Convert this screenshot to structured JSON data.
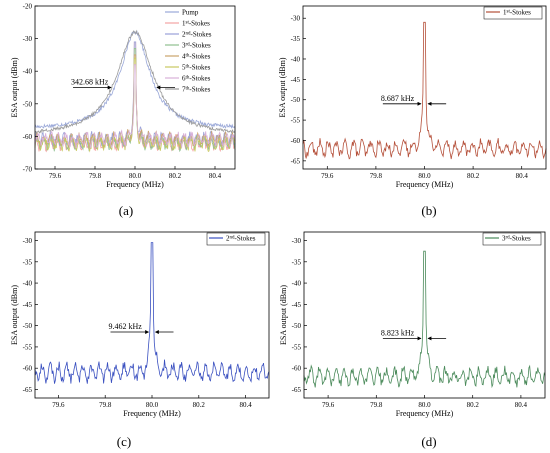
{
  "chart_data": [
    {
      "id": "a",
      "type": "line",
      "caption": "(a)",
      "xlabel": "Frequency (MHz)",
      "ylabel": "ESA output (dBm)",
      "xlim": [
        79.5,
        80.5
      ],
      "ylim": [
        -70,
        -20
      ],
      "xticks": [
        79.6,
        79.8,
        80.0,
        80.2,
        80.4
      ],
      "yticks": [
        -70,
        -60,
        -50,
        -40,
        -30,
        -20
      ],
      "legend_position": "top-right",
      "series": [
        {
          "name": "Pump",
          "color": "#9aa8d8",
          "shape": "pump",
          "peak": -28,
          "floor": -58
        },
        {
          "name": "1st-Stokes",
          "name_base": "1",
          "name_sup": "st",
          "name_tail": "-Stokes",
          "color": "#f4a3a3",
          "shape": "narrow",
          "peak": -31,
          "floor": -62
        },
        {
          "name": "2nd-Stokes",
          "name_base": "2",
          "name_sup": "nd",
          "name_tail": "-Stokes",
          "color": "#9aa0d8",
          "shape": "narrow",
          "peak": -31,
          "floor": -61
        },
        {
          "name": "3rd-Stokes",
          "name_base": "3",
          "name_sup": "rd",
          "name_tail": "-Stokes",
          "color": "#8fbf8f",
          "shape": "narrow",
          "peak": -33,
          "floor": -62
        },
        {
          "name": "4th-Stokes",
          "name_base": "4",
          "name_sup": "th",
          "name_tail": "-Stokes",
          "color": "#c9a26a",
          "shape": "narrow",
          "peak": -35,
          "floor": -61
        },
        {
          "name": "5th-Stokes",
          "name_base": "5",
          "name_sup": "th",
          "name_tail": "-Stokes",
          "color": "#c8c860",
          "shape": "narrow",
          "peak": -36,
          "floor": -62
        },
        {
          "name": "6th-Stokes",
          "name_base": "6",
          "name_sup": "th",
          "name_tail": "-Stokes",
          "color": "#d8b0d8",
          "shape": "narrow",
          "peak": -38,
          "floor": -61
        },
        {
          "name": "7th-Stokes",
          "name_base": "7",
          "name_sup": "th",
          "name_tail": "-Stokes",
          "color": "#9a9a9a",
          "shape": "lorentz",
          "peak": -28,
          "floor": -60
        }
      ],
      "annotation": {
        "text": "342.68 kHz",
        "level": -45,
        "left": 79.88,
        "right": 80.11
      }
    },
    {
      "id": "b",
      "type": "line",
      "caption": "(b)",
      "xlabel": "Frequency (MHz)",
      "ylabel": "ESA output (dBm)",
      "xlim": [
        79.5,
        80.5
      ],
      "ylim": [
        -67,
        -27
      ],
      "xticks": [
        79.6,
        79.8,
        80.0,
        80.2,
        80.4
      ],
      "yticks": [
        -65,
        -60,
        -55,
        -50,
        -45,
        -40,
        -35,
        -30
      ],
      "legend_position": "top-right",
      "series": [
        {
          "name": "1st-Stokes",
          "name_base": "1",
          "name_sup": "st",
          "name_tail": "-Stokes",
          "color": "#b5503a",
          "shape": "narrow",
          "peak": -31,
          "floor": -62
        }
      ],
      "annotation": {
        "text": "8.687 kHz",
        "level": -51,
        "left": 79.985,
        "right": 80.015
      }
    },
    {
      "id": "c",
      "type": "line",
      "caption": "(c)",
      "xlabel": "Frequency (MHz)",
      "ylabel": "ESA output (dBm)",
      "xlim": [
        79.5,
        80.5
      ],
      "ylim": [
        -67,
        -28
      ],
      "xticks": [
        79.6,
        79.8,
        80.0,
        80.2,
        80.4
      ],
      "yticks": [
        -65,
        -60,
        -55,
        -50,
        -45,
        -40,
        -35,
        -30
      ],
      "legend_position": "top-right",
      "series": [
        {
          "name": "2nd-Stokes",
          "name_base": "2",
          "name_sup": "nd",
          "name_tail": "-Stokes",
          "color": "#3a50c0",
          "shape": "narrow",
          "peak": -30.5,
          "floor": -61
        }
      ],
      "annotation": {
        "text": "9.462 kHz",
        "level": -51.5,
        "left": 79.985,
        "right": 80.015
      }
    },
    {
      "id": "d",
      "type": "line",
      "caption": "(d)",
      "xlabel": "Frequency (MHz)",
      "ylabel": "ESA output (dBm)",
      "xlim": [
        79.5,
        80.5
      ],
      "ylim": [
        -67,
        -28
      ],
      "xticks": [
        79.6,
        79.8,
        80.0,
        80.2,
        80.4
      ],
      "yticks": [
        -65,
        -60,
        -55,
        -50,
        -45,
        -40,
        -35,
        -30
      ],
      "legend_position": "top-right",
      "series": [
        {
          "name": "3rd-Stokes",
          "name_base": "3",
          "name_sup": "rd",
          "name_tail": "-Stokes",
          "color": "#4a8a5a",
          "shape": "narrow",
          "peak": -32.5,
          "floor": -62
        }
      ],
      "annotation": {
        "text": "8.823 kHz",
        "level": -53,
        "left": 79.985,
        "right": 80.015
      }
    }
  ]
}
